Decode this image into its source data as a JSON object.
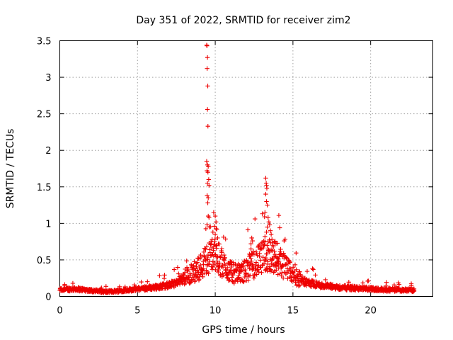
{
  "chart_data": {
    "type": "scatter",
    "title": "Day 351 of 2022, SRMTID for receiver zim2",
    "xlabel": "GPS time / hours",
    "ylabel": "SRMTID / TECUs",
    "xlim": [
      0,
      24
    ],
    "ylim": [
      0,
      3.5
    ],
    "xticks": [
      0,
      5,
      10,
      15,
      20
    ],
    "xtick_labels": [
      "0",
      "5",
      "10",
      "15",
      "20"
    ],
    "yticks": [
      0,
      0.5,
      1,
      1.5,
      2,
      2.5,
      3,
      3.5
    ],
    "ytick_labels": [
      "0",
      "0.5",
      "1",
      "1.5",
      "2",
      "2.5",
      "3",
      "3.5"
    ],
    "grid": true,
    "marker": "+",
    "color": "#ee0000",
    "series": [
      {
        "name": "zim2",
        "baseline_envelope": {
          "x": [
            0,
            1,
            2,
            3,
            4,
            5,
            6,
            7,
            7.5,
            8,
            8.5,
            9,
            9.5,
            10,
            10.5,
            11,
            11.5,
            12,
            12.5,
            13,
            13.5,
            14,
            14.5,
            15,
            15.5,
            16,
            17,
            18,
            19,
            20,
            21,
            22,
            22.8
          ],
          "y": [
            0.09,
            0.1,
            0.08,
            0.06,
            0.08,
            0.1,
            0.12,
            0.15,
            0.18,
            0.25,
            0.3,
            0.38,
            0.5,
            0.55,
            0.42,
            0.32,
            0.28,
            0.35,
            0.42,
            0.5,
            0.55,
            0.5,
            0.38,
            0.28,
            0.22,
            0.18,
            0.14,
            0.12,
            0.11,
            0.1,
            0.09,
            0.09,
            0.08
          ]
        },
        "highlight_points": [
          [
            9.45,
            3.44
          ],
          [
            9.47,
            3.43
          ],
          [
            9.5,
            3.27
          ],
          [
            9.48,
            3.12
          ],
          [
            9.52,
            2.88
          ],
          [
            9.5,
            2.56
          ],
          [
            9.53,
            2.33
          ],
          [
            9.45,
            1.85
          ],
          [
            9.5,
            1.8
          ],
          [
            9.55,
            1.78
          ],
          [
            9.47,
            1.72
          ],
          [
            9.53,
            1.7
          ],
          [
            9.58,
            1.6
          ],
          [
            9.5,
            1.55
          ],
          [
            9.6,
            1.52
          ],
          [
            9.48,
            1.38
          ],
          [
            9.55,
            1.35
          ],
          [
            9.52,
            1.28
          ],
          [
            9.55,
            1.1
          ],
          [
            9.6,
            1.08
          ],
          [
            9.48,
            0.98
          ],
          [
            9.62,
            0.95
          ],
          [
            9.9,
            1.15
          ],
          [
            10.0,
            1.1
          ],
          [
            10.05,
            1.02
          ],
          [
            9.95,
            0.96
          ],
          [
            10.1,
            0.92
          ],
          [
            9.85,
            0.88
          ],
          [
            10.0,
            0.85
          ],
          [
            10.15,
            0.8
          ],
          [
            9.8,
            0.78
          ],
          [
            10.2,
            0.72
          ],
          [
            10.1,
            0.7
          ],
          [
            9.9,
            0.68
          ],
          [
            12.3,
            0.72
          ],
          [
            12.35,
            0.8
          ],
          [
            12.4,
            0.76
          ],
          [
            12.3,
            0.65
          ],
          [
            12.45,
            0.62
          ],
          [
            12.2,
            0.58
          ],
          [
            12.25,
            0.55
          ],
          [
            13.25,
            1.62
          ],
          [
            13.28,
            1.55
          ],
          [
            13.3,
            1.52
          ],
          [
            13.32,
            1.48
          ],
          [
            13.25,
            1.4
          ],
          [
            13.3,
            1.3
          ],
          [
            13.35,
            1.25
          ],
          [
            13.2,
            1.15
          ],
          [
            13.4,
            1.08
          ],
          [
            13.45,
            1.02
          ],
          [
            13.5,
            0.98
          ],
          [
            13.35,
            0.95
          ],
          [
            13.55,
            0.9
          ],
          [
            13.3,
            0.88
          ],
          [
            13.6,
            0.85
          ],
          [
            13.2,
            0.82
          ],
          [
            13.65,
            0.78
          ],
          [
            13.4,
            0.75
          ],
          [
            13.7,
            0.7
          ],
          [
            13.8,
            0.62
          ],
          [
            13.9,
            0.55
          ],
          [
            14.0,
            0.52
          ],
          [
            14.1,
            0.48
          ],
          [
            14.2,
            0.44
          ],
          [
            14.3,
            0.42
          ]
        ]
      }
    ]
  }
}
